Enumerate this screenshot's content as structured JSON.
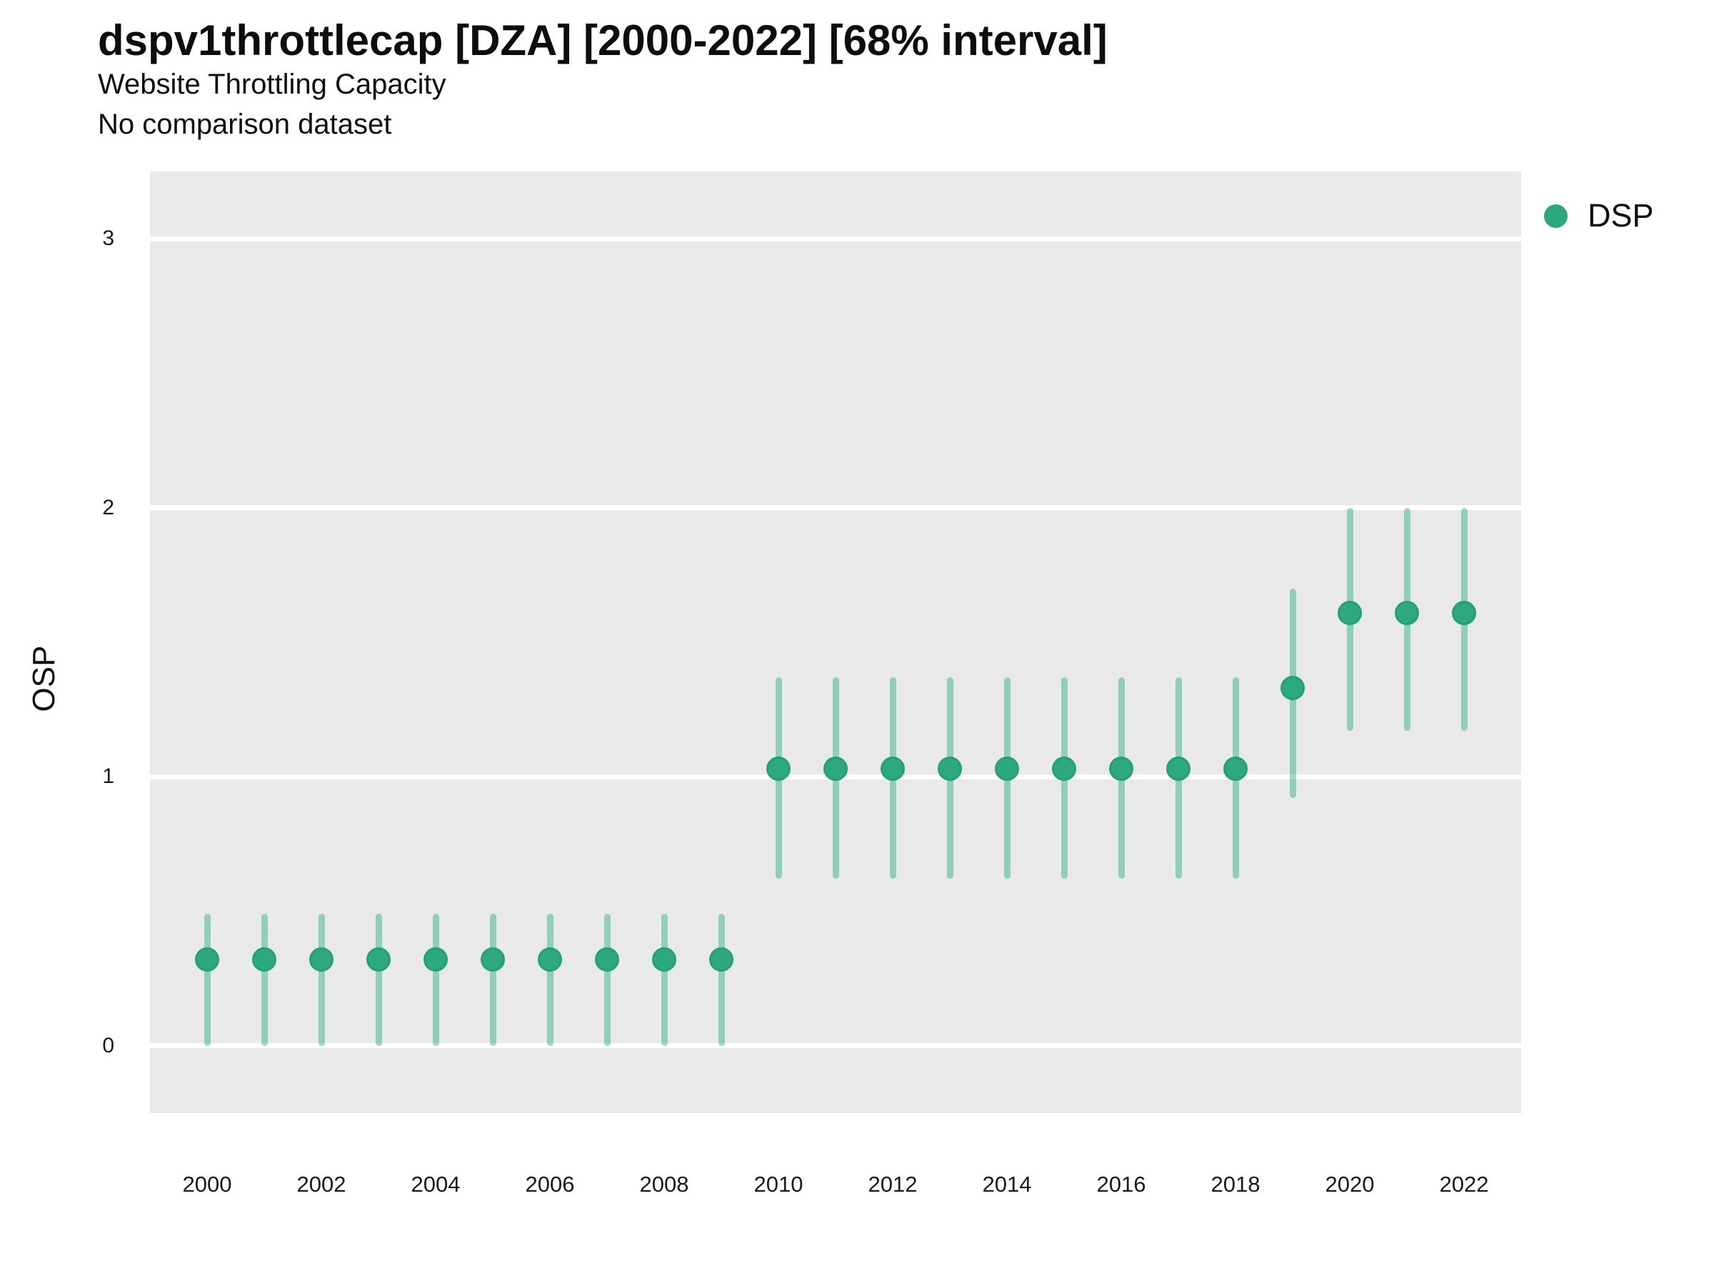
{
  "header": {
    "title": "dspv1throttlecap [DZA] [2000-2022] [68% interval]",
    "subtitle": "Website Throttling Capacity",
    "note": "No comparison dataset"
  },
  "chart_data": {
    "type": "scatter",
    "mode": "point-range (dot with 68% interval bars)",
    "title": "dspv1throttlecap [DZA] [2000-2022] [68% interval]",
    "subtitle": "Website Throttling Capacity",
    "note": "No comparison dataset",
    "xlabel": "",
    "ylabel": "OSP",
    "x": [
      2000,
      2001,
      2002,
      2003,
      2004,
      2005,
      2006,
      2007,
      2008,
      2009,
      2010,
      2011,
      2012,
      2013,
      2014,
      2015,
      2016,
      2017,
      2018,
      2019,
      2020,
      2021,
      2022
    ],
    "series": [
      {
        "name": "DSP",
        "mid": [
          0.32,
          0.32,
          0.32,
          0.32,
          0.32,
          0.32,
          0.32,
          0.32,
          0.32,
          0.32,
          1.03,
          1.03,
          1.03,
          1.03,
          1.03,
          1.03,
          1.03,
          1.03,
          1.03,
          1.33,
          1.61,
          1.61,
          1.61
        ],
        "lo": [
          0.0,
          0.0,
          0.0,
          0.0,
          0.0,
          0.0,
          0.0,
          0.0,
          0.0,
          0.0,
          0.62,
          0.62,
          0.62,
          0.62,
          0.62,
          0.62,
          0.62,
          0.62,
          0.62,
          0.92,
          1.17,
          1.17,
          1.17
        ],
        "hi": [
          0.49,
          0.49,
          0.49,
          0.49,
          0.49,
          0.49,
          0.49,
          0.49,
          0.49,
          0.49,
          1.37,
          1.37,
          1.37,
          1.37,
          1.37,
          1.37,
          1.37,
          1.37,
          1.37,
          1.7,
          2.0,
          2.0,
          2.0
        ]
      }
    ],
    "xlim": [
      1999,
      2023
    ],
    "ylim": [
      -0.25,
      3.25
    ],
    "xticks": [
      2000,
      2002,
      2004,
      2006,
      2008,
      2010,
      2012,
      2014,
      2016,
      2018,
      2020,
      2022
    ],
    "yticks": [
      0,
      1,
      2,
      3
    ],
    "grid": "horizontal white gridlines on gray panel",
    "legend": {
      "position": "top-right",
      "entries": [
        {
          "label": "DSP",
          "color": "#2aa87c"
        }
      ]
    },
    "colors": {
      "marker": "#2ea87d",
      "marker_edge": "#23a173",
      "interval": "rgba(42, 168, 124, 0.45)",
      "panel_bg": "#e9e9e9",
      "gridline": "#ffffff",
      "text": "#0d0d0d"
    }
  }
}
